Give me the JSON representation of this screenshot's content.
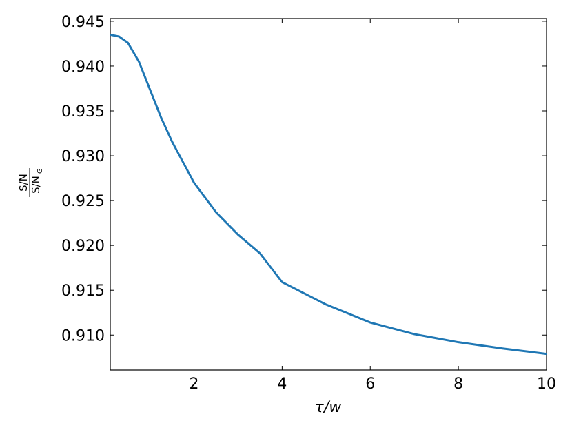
{
  "chart_data": {
    "type": "line",
    "xlabel": "τ/w",
    "ylabel": {
      "numerator": "S/N",
      "denominator": "S/N",
      "subscript": "G"
    },
    "x": [
      0.1,
      0.3,
      0.5,
      0.75,
      1.0,
      1.25,
      1.5,
      2.0,
      2.5,
      3.0,
      3.5,
      4.0,
      5.0,
      6.0,
      7.0,
      8.0,
      9.0,
      10.0
    ],
    "series": [
      {
        "color": "#1f77b4",
        "values": [
          0.9435,
          0.9433,
          0.9426,
          0.9405,
          0.9374,
          0.9343,
          0.9316,
          0.927,
          0.9237,
          0.9212,
          0.9191,
          0.9159,
          0.9134,
          0.9114,
          0.9101,
          0.9092,
          0.9085,
          0.9079
        ]
      }
    ],
    "xlim": [
      0.1,
      10
    ],
    "xticks": [
      2,
      4,
      6,
      8,
      10
    ],
    "ylim": [
      0.9061,
      0.9453
    ],
    "yticks": [
      {
        "value": 0.91,
        "label": "0.910"
      },
      0.915,
      {
        "value": 0.92,
        "label": "0.920"
      },
      0.925,
      {
        "value": 0.93,
        "label": "0.930"
      },
      0.935,
      {
        "value": 0.94,
        "label": "0.940"
      },
      0.945
    ]
  }
}
